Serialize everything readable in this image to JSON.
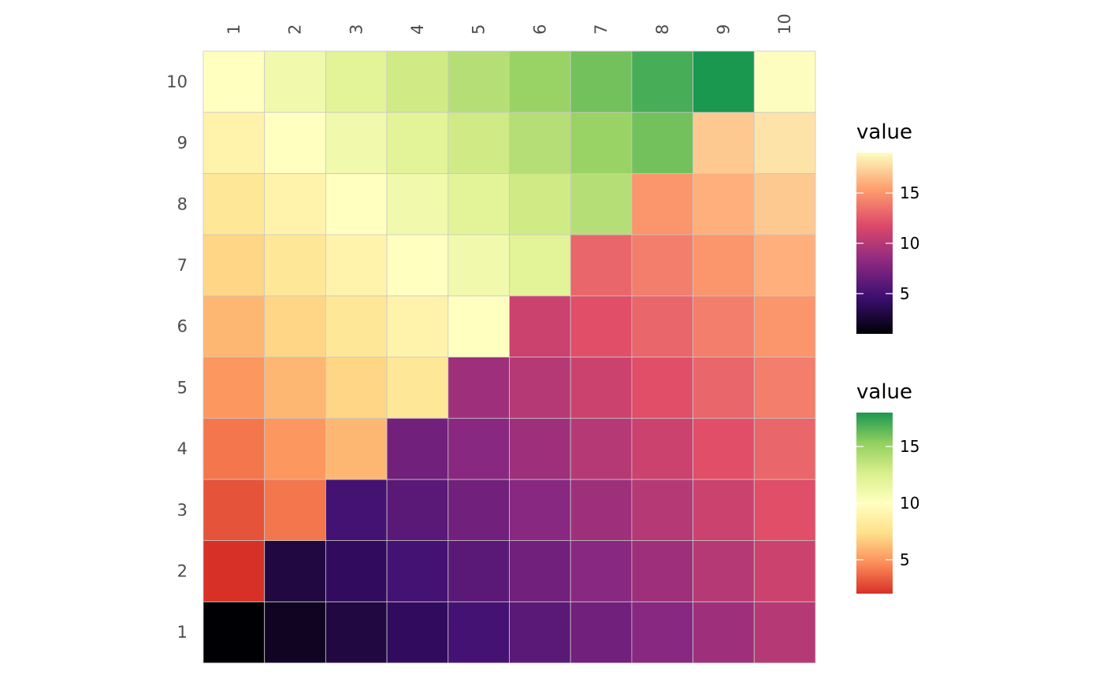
{
  "chart_data": {
    "type": "heatmap",
    "x_categories": [
      "1",
      "2",
      "3",
      "4",
      "5",
      "6",
      "7",
      "8",
      "9",
      "10"
    ],
    "y_categories": [
      "1",
      "2",
      "3",
      "4",
      "5",
      "6",
      "7",
      "8",
      "9",
      "10"
    ],
    "value_definition": "x + y - 1",
    "rows_bottom_to_top": [
      [
        1,
        2,
        3,
        4,
        5,
        6,
        7,
        8,
        9,
        10
      ],
      [
        2,
        3,
        4,
        5,
        6,
        7,
        8,
        9,
        10,
        11
      ],
      [
        3,
        4,
        5,
        6,
        7,
        8,
        9,
        10,
        11,
        12
      ],
      [
        4,
        5,
        6,
        7,
        8,
        9,
        10,
        11,
        12,
        13
      ],
      [
        5,
        6,
        7,
        8,
        9,
        10,
        11,
        12,
        13,
        14
      ],
      [
        6,
        7,
        8,
        9,
        10,
        11,
        12,
        13,
        14,
        15
      ],
      [
        7,
        8,
        9,
        10,
        11,
        12,
        13,
        14,
        15,
        16
      ],
      [
        8,
        9,
        10,
        11,
        12,
        13,
        14,
        15,
        16,
        17
      ],
      [
        9,
        10,
        11,
        12,
        13,
        14,
        15,
        16,
        17,
        18
      ],
      [
        10,
        11,
        12,
        13,
        14,
        15,
        16,
        17,
        18,
        19
      ]
    ],
    "split_rule": "cells with x >= y use the magma (upper-left) scale; cells with x < y use the RdYlGn (lower-right) scale",
    "scales": [
      {
        "name": "magma",
        "title": "value",
        "limits": [
          1,
          19
        ],
        "breaks": [
          5,
          10,
          15
        ],
        "colors": [
          "#000004",
          "#3b0f70",
          "#8c2981",
          "#de4968",
          "#fe9f6d",
          "#fcfdbf"
        ]
      },
      {
        "name": "RdYlGn",
        "title": "value",
        "limits": [
          2,
          18
        ],
        "breaks": [
          5,
          10,
          15
        ],
        "colors": [
          "#d73027",
          "#fc8d59",
          "#fee08b",
          "#ffffbf",
          "#d9ef8b",
          "#91cf60",
          "#1a9850"
        ]
      }
    ],
    "grid": false,
    "legend_position": "right"
  }
}
